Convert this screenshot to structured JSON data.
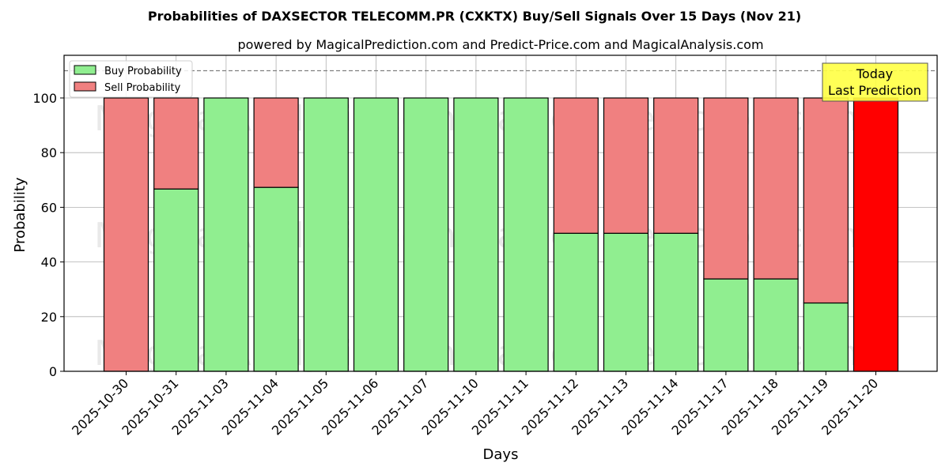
{
  "chart_data": {
    "type": "bar",
    "stacked": true,
    "title": "Probabilities of DAXSECTOR TELECOMM.PR (CXKTX) Buy/Sell Signals Over 15 Days (Nov 21)",
    "subtitle": "powered by MagicalPrediction.com and Predict-Price.com and MagicalAnalysis.com",
    "xlabel": "Days",
    "ylabel": "Probability",
    "ylim": [
      0,
      115
    ],
    "yticks": [
      0,
      20,
      40,
      60,
      80,
      100
    ],
    "grid": true,
    "reference_line": 110,
    "legend_position": "upper left",
    "categories": [
      "2025-10-30",
      "2025-10-31",
      "2025-11-03",
      "2025-11-04",
      "2025-11-05",
      "2025-11-06",
      "2025-11-07",
      "2025-11-10",
      "2025-11-11",
      "2025-11-12",
      "2025-11-13",
      "2025-11-14",
      "2025-11-17",
      "2025-11-18",
      "2025-11-19",
      "2025-11-20"
    ],
    "series": [
      {
        "name": "Buy Probability",
        "color": "#90ee90",
        "values": [
          0,
          66.7,
          100,
          67.3,
          100,
          100,
          100,
          100,
          100,
          50.5,
          50.5,
          50.5,
          33.8,
          33.8,
          25,
          0
        ]
      },
      {
        "name": "Sell Probability",
        "color": "#f08080",
        "values": [
          100,
          33.3,
          0,
          32.7,
          0,
          0,
          0,
          0,
          0,
          49.5,
          49.5,
          49.5,
          66.2,
          66.2,
          75,
          100
        ]
      }
    ],
    "highlight": {
      "index": 15,
      "color": "#ff0000",
      "label_line1": "Today",
      "label_line2": "Last Prediction"
    },
    "watermarks": [
      "MagicalAnalysis.com",
      "MagicalPrediction.com"
    ]
  },
  "labels": {
    "title": "Probabilities of DAXSECTOR TELECOMM.PR (CXKTX) Buy/Sell Signals Over 15 Days (Nov 21)",
    "subtitle": "powered by MagicalPrediction.com and Predict-Price.com and MagicalAnalysis.com",
    "xlabel": "Days",
    "ylabel": "Probability",
    "legend_buy": "Buy Probability",
    "legend_sell": "Sell Probability",
    "today_line1": "Today",
    "today_line2": "Last Prediction"
  },
  "colors": {
    "buy": "#90ee90",
    "sell": "#f08080",
    "today": "#ff0000",
    "annotation_bg": "#ffff44",
    "grid": "#b0b0b0"
  }
}
